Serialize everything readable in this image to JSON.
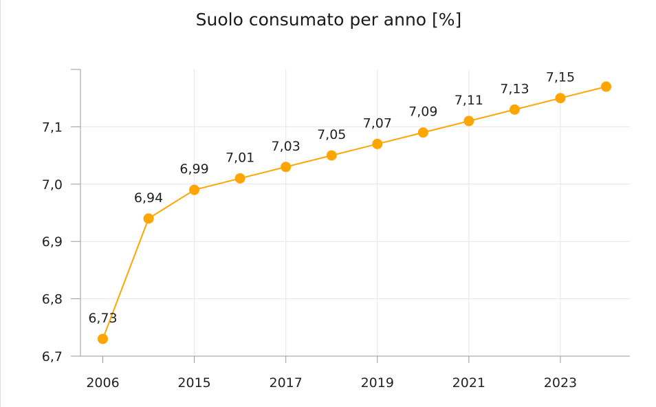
{
  "chart_data": {
    "type": "line",
    "title": "Suolo consumato per anno [%]",
    "xlabel": "",
    "ylabel": "",
    "categories": [
      "2006",
      "",
      "2015",
      "",
      "2017",
      "",
      "2019",
      "",
      "2021",
      "",
      "2023",
      ""
    ],
    "x_tick_labels": [
      "2006",
      "2015",
      "2017",
      "2019",
      "2021",
      "2023"
    ],
    "series": [
      {
        "values": [
          6.73,
          6.94,
          6.99,
          7.01,
          7.03,
          7.05,
          7.07,
          7.09,
          7.11,
          7.13,
          7.15,
          7.17
        ],
        "data_labels": [
          "6,73",
          "6,94",
          "6,99",
          "7,01",
          "7,03",
          "7,05",
          "7,07",
          "7,09",
          "7,11",
          "7,13",
          "7,15",
          ""
        ],
        "color": "#FFA500"
      }
    ],
    "ylim": [
      6.7,
      7.2
    ],
    "y_ticks": [
      6.7,
      6.8,
      6.9,
      7.0,
      7.1
    ],
    "y_tick_labels": [
      "6,7",
      "6,8",
      "6,9",
      "7,0",
      "7,1"
    ],
    "grid": true,
    "legend": "none"
  },
  "colors": {
    "line": "#FFA500",
    "grid": "#e6e6e6",
    "axis": "#999999"
  }
}
